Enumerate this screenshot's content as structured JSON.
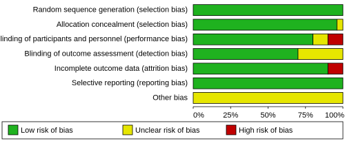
{
  "chart_data": {
    "type": "stacked-barh",
    "categories": [
      "Random sequence generation (selection bias)",
      "Allocation concealment (selection bias)",
      "Blinding of participants and personnel (performance bias)",
      "Blinding of outcome assessment (detection bias)",
      "Incomplete outcome data (attrition bias)",
      "Selective reporting (reporting bias)",
      "Other bias"
    ],
    "series": [
      {
        "name": "Low risk of bias",
        "color": "#1fb21f",
        "values": [
          100,
          96,
          80,
          70,
          90,
          100,
          0
        ]
      },
      {
        "name": "Unclear risk of bias",
        "color": "#e6e600",
        "values": [
          0,
          4,
          10,
          30,
          0,
          0,
          100
        ]
      },
      {
        "name": "High risk of bias",
        "color": "#c00000",
        "values": [
          0,
          0,
          10,
          0,
          10,
          0,
          0
        ]
      }
    ],
    "xlim": [
      0,
      100
    ],
    "xticks": [
      {
        "value": 0,
        "label": "0%"
      },
      {
        "value": 25,
        "label": "25%"
      },
      {
        "value": 50,
        "label": "50%"
      },
      {
        "value": 75,
        "label": "75%"
      },
      {
        "value": 100,
        "label": "100%"
      }
    ],
    "legend": "bottom"
  }
}
